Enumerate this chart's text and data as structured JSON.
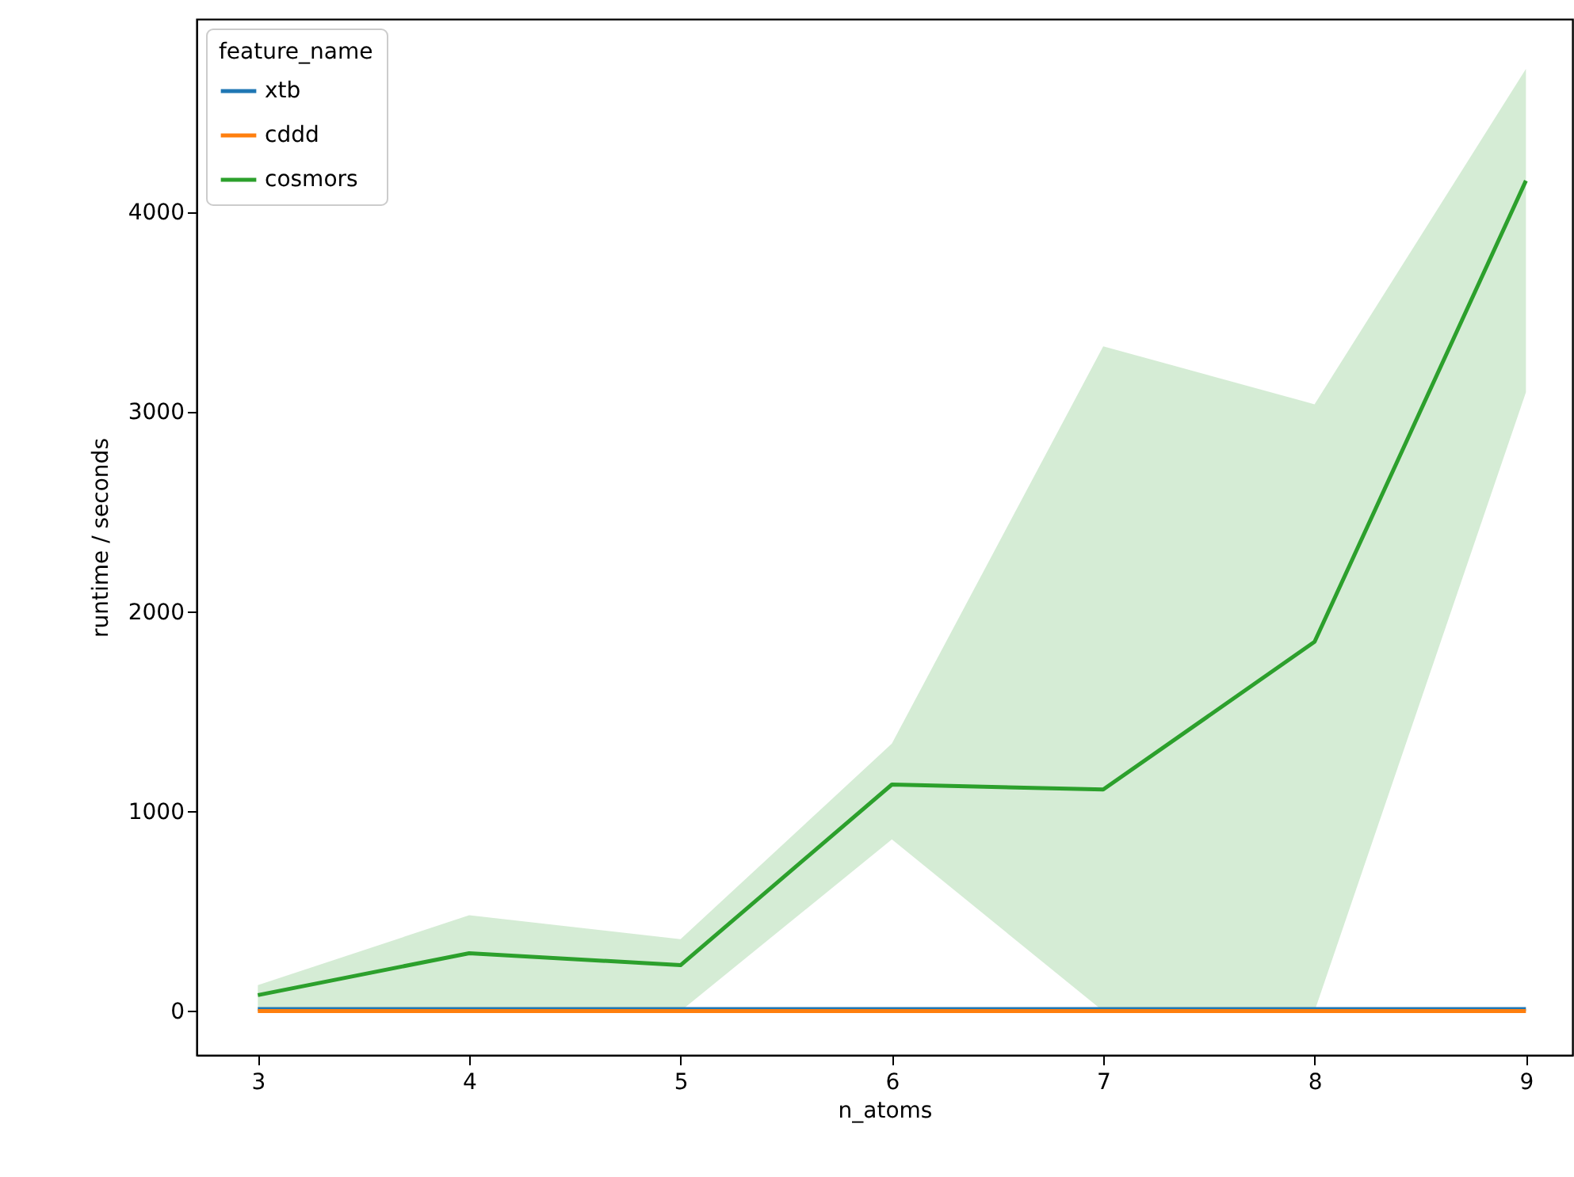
{
  "chart_data": {
    "type": "line",
    "xlabel": "n_atoms",
    "ylabel": "runtime / seconds",
    "legend_title": "feature_name",
    "legend": "top left",
    "grid": false,
    "x": [
      3,
      4,
      5,
      6,
      7,
      8,
      9
    ],
    "xlim": [
      2.71,
      9.22
    ],
    "xticks": [
      3,
      4,
      5,
      6,
      7,
      8,
      9
    ],
    "ylim": [
      -220,
      4970
    ],
    "yticks": [
      0,
      1000,
      2000,
      3000,
      4000
    ],
    "series": [
      {
        "name": "xtb",
        "color": "#1f77b4",
        "values": [
          10,
          10,
          10,
          10,
          10,
          10,
          10
        ]
      },
      {
        "name": "cddd",
        "color": "#ff7f0e",
        "values": [
          0,
          0,
          0,
          0,
          0,
          0,
          0
        ]
      },
      {
        "name": "cosmors",
        "color": "#2ca02c",
        "values": [
          80,
          290,
          230,
          1135,
          1110,
          1850,
          4160
        ],
        "lower": [
          0,
          0,
          0,
          860,
          0,
          0,
          3100
        ],
        "upper": [
          130,
          480,
          360,
          1340,
          3330,
          3040,
          4720
        ]
      }
    ]
  }
}
